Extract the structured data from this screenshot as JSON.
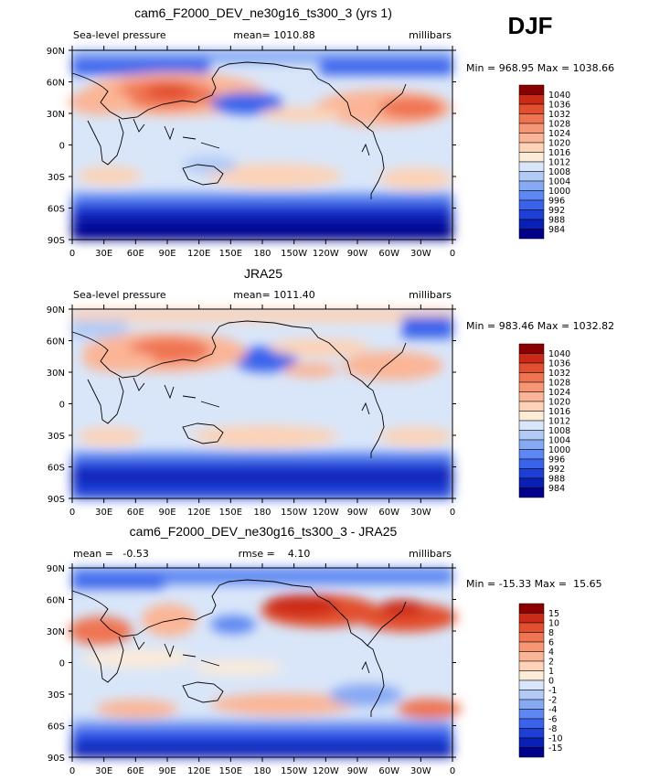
{
  "season": "DJF",
  "variable": "Sea-level pressure",
  "units": "millibars",
  "x_ticks": [
    "0",
    "30E",
    "60E",
    "90E",
    "120E",
    "150E",
    "180",
    "150W",
    "120W",
    "90W",
    "60W",
    "30W",
    "0"
  ],
  "y_ticks": [
    "90N",
    "60N",
    "30N",
    "0",
    "30S",
    "60S",
    "90S"
  ],
  "colors": {
    "abs_scale": [
      "#00008b",
      "#0a1fb4",
      "#1d3fd6",
      "#3a63ec",
      "#5d87f2",
      "#86a9f4",
      "#b2cbf6",
      "#d9e6f9",
      "#fcebd7",
      "#fdd2b6",
      "#fbb596",
      "#f79674",
      "#ef7452",
      "#e2502f",
      "#cc2a16",
      "#8a0000"
    ],
    "diff_scale": [
      "#00008b",
      "#0a1fb4",
      "#1d3fd6",
      "#3a63ec",
      "#5d87f2",
      "#86a9f4",
      "#b2cbf6",
      "#d9e6f9",
      "#fcebd7",
      "#fdd2b6",
      "#fbb596",
      "#f79674",
      "#ef7452",
      "#e2502f",
      "#cc2a16",
      "#8a0000"
    ],
    "coast": "#000000"
  },
  "chart_data": [
    {
      "type": "heatmap",
      "title": "cam6_F2000_DEV_ne30g16_ts300_3 (yrs 1)",
      "left_label": "Sea-level pressure",
      "center_label": "mean= 1010.88",
      "right_label": "millibars",
      "mean": 1010.88,
      "min_max": "Min = 968.95 Max = 1038.66",
      "min": 968.95,
      "max": 1038.66,
      "levels": [
        "1040",
        "1036",
        "1032",
        "1028",
        "1024",
        "1020",
        "1016",
        "1012",
        "1008",
        "1004",
        "1000",
        "996",
        "992",
        "988",
        "984"
      ],
      "xlim": [
        0,
        360
      ],
      "ylim": [
        -90,
        90
      ]
    },
    {
      "type": "heatmap",
      "title": "JRA25",
      "left_label": "Sea-level pressure",
      "center_label": "mean= 1011.40",
      "right_label": "millibars",
      "mean": 1011.4,
      "min_max": "Min = 983.46 Max = 1032.82",
      "min": 983.46,
      "max": 1032.82,
      "levels": [
        "1040",
        "1036",
        "1032",
        "1028",
        "1024",
        "1020",
        "1016",
        "1012",
        "1008",
        "1004",
        "1000",
        "996",
        "992",
        "988",
        "984"
      ],
      "xlim": [
        0,
        360
      ],
      "ylim": [
        -90,
        90
      ]
    },
    {
      "type": "heatmap",
      "title": "cam6_F2000_DEV_ne30g16_ts300_3 - JRA25",
      "left_label": "mean =   -0.53",
      "center_label": "rmse =    4.10",
      "right_label": "millibars",
      "mean": -0.53,
      "rmse": 4.1,
      "min_max": "Min = -15.33 Max =  15.65",
      "min": -15.33,
      "max": 15.65,
      "levels": [
        "15",
        "10",
        "8",
        "6",
        "4",
        "2",
        "1",
        "0",
        "-1",
        "-2",
        "-4",
        "-6",
        "-8",
        "-10",
        "-15"
      ],
      "xlim": [
        0,
        360
      ],
      "ylim": [
        -90,
        90
      ]
    }
  ]
}
